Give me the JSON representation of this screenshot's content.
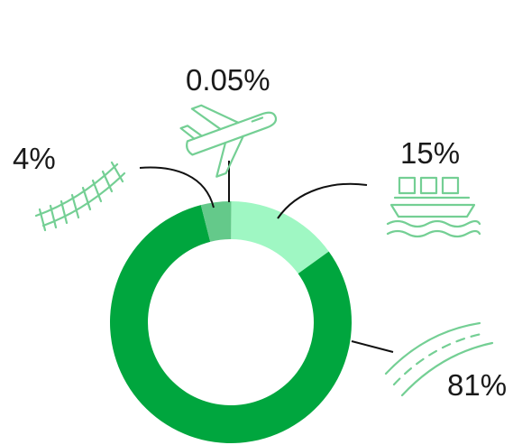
{
  "chart_data": {
    "type": "pie",
    "style": "donut",
    "slices": [
      {
        "label": "0.05%",
        "value": 0.05,
        "icon": "airplane-icon",
        "color": "#74cf94"
      },
      {
        "label": "15%",
        "value": 15,
        "icon": "ship-icon",
        "color": "#9ff7c3"
      },
      {
        "label": "81%",
        "value": 81,
        "icon": "road-icon",
        "color": "#00a63e"
      },
      {
        "label": "4%",
        "value": 4,
        "icon": "railway-track-icon",
        "color": "#64c98a"
      }
    ],
    "icon_color": "#74cf94",
    "label_color": "#1a1a1a"
  }
}
